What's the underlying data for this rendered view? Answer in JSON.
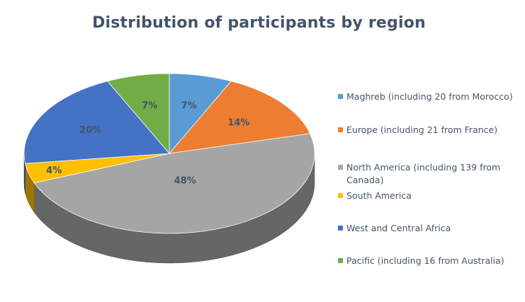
{
  "chart_data": {
    "type": "pie",
    "title": "Distribution of participants by region",
    "legend_position": "right",
    "labels_shown_as": "percent",
    "slices": [
      {
        "label": "Maghreb (including 20 from Morocco)",
        "value": 7,
        "display": "7%",
        "color": "#5b9bd5"
      },
      {
        "label": "Europe (including 21 from France)",
        "value": 14,
        "display": "14%",
        "color": "#ed7d31"
      },
      {
        "label": "North America (including 139 from Canada)",
        "value": 48,
        "display": "48%",
        "color": "#a5a5a5"
      },
      {
        "label": "South America",
        "value": 4,
        "display": "4%",
        "color": "#ffc000"
      },
      {
        "label": "West and Central Africa",
        "value": 20,
        "display": "20%",
        "color": "#4472c4"
      },
      {
        "label": "Pacific (including 16 from Australia)",
        "value": 7,
        "display": "7%",
        "color": "#70ad47"
      }
    ]
  }
}
